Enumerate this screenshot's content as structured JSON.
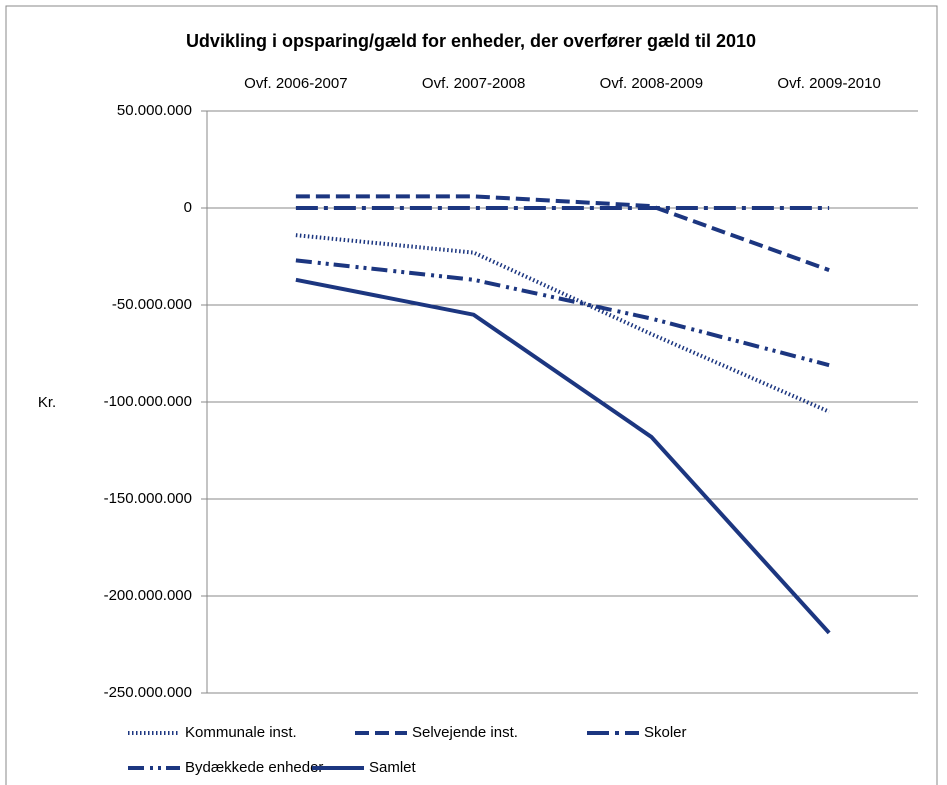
{
  "chart_data": {
    "type": "line",
    "title": "Udvikling i opsparing/gæld for enheder, der overfører gæld til 2010",
    "y_label": "Kr.",
    "categories": [
      "Ovf. 2006-2007",
      "Ovf. 2007-2008",
      "Ovf. 2008-2009",
      "Ovf. 2009-2010"
    ],
    "series": [
      {
        "name": "Kommunale inst.",
        "color": "#1c3680",
        "style": "dotted",
        "values": [
          -14000000,
          -23000000,
          -65000000,
          -105000000
        ]
      },
      {
        "name": "Selvejende inst.",
        "color": "#1c3680",
        "style": "dashed",
        "values": [
          6000000,
          6000000,
          1000000,
          -32000000
        ]
      },
      {
        "name": "Skoler",
        "color": "#1c3680",
        "style": "dashdot",
        "values": [
          0,
          0,
          0,
          0
        ]
      },
      {
        "name": "Bydækkede enheder",
        "color": "#1c3680",
        "style": "dashdotdot",
        "values": [
          -27000000,
          -37000000,
          -57000000,
          -81000000
        ]
      },
      {
        "name": "Samlet",
        "color": "#1c3680",
        "style": "solid",
        "values": [
          -37000000,
          -55000000,
          -118000000,
          -219000000
        ]
      }
    ],
    "ylim": [
      -250000000,
      50000000
    ],
    "yticks": [
      {
        "value": -250000000,
        "label": "-250.000.000"
      },
      {
        "value": -200000000,
        "label": "-200.000.000"
      },
      {
        "value": -150000000,
        "label": "-150.000.000"
      },
      {
        "value": -100000000,
        "label": "-100.000.000"
      },
      {
        "value": -50000000,
        "label": "-50.000.000"
      },
      {
        "value": 0,
        "label": "0"
      },
      {
        "value": 50000000,
        "label": "50.000.000"
      }
    ],
    "grid": true,
    "legend": "bottom"
  }
}
